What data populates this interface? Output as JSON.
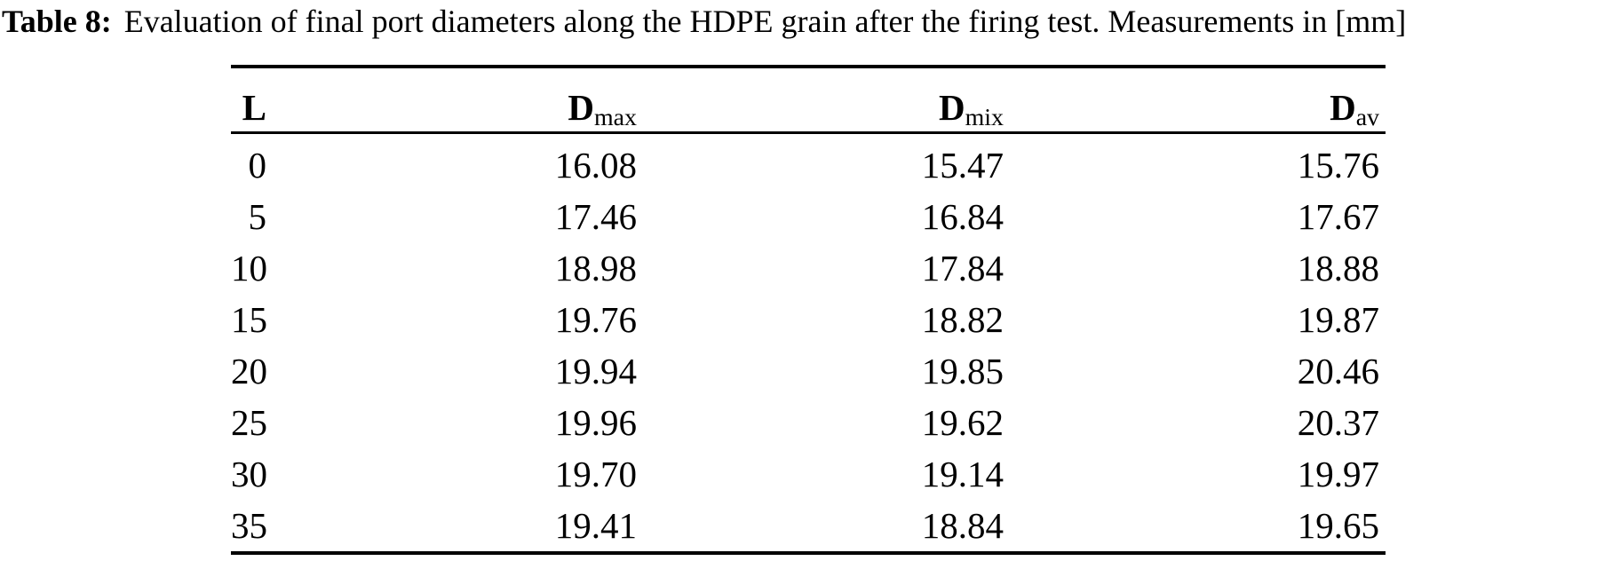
{
  "caption": {
    "label": "Table 8:",
    "text": "Evaluation of final port diameters along the HDPE grain after the firing test. Measurements in [mm]"
  },
  "table": {
    "columns": [
      {
        "label": "L",
        "sub": ""
      },
      {
        "label": "D",
        "sub": "max"
      },
      {
        "label": "D",
        "sub": "mix"
      },
      {
        "label": "D",
        "sub": "av"
      }
    ],
    "rows": [
      [
        "0",
        "16.08",
        "15.47",
        "15.76"
      ],
      [
        "5",
        "17.46",
        "16.84",
        "17.67"
      ],
      [
        "10",
        "18.98",
        "17.84",
        "18.88"
      ],
      [
        "15",
        "19.76",
        "18.82",
        "19.87"
      ],
      [
        "20",
        "19.94",
        "19.85",
        "20.46"
      ],
      [
        "25",
        "19.96",
        "19.62",
        "20.37"
      ],
      [
        "30",
        "19.70",
        "19.14",
        "19.97"
      ],
      [
        "35",
        "19.41",
        "18.84",
        "19.65"
      ]
    ],
    "units": "mm"
  }
}
